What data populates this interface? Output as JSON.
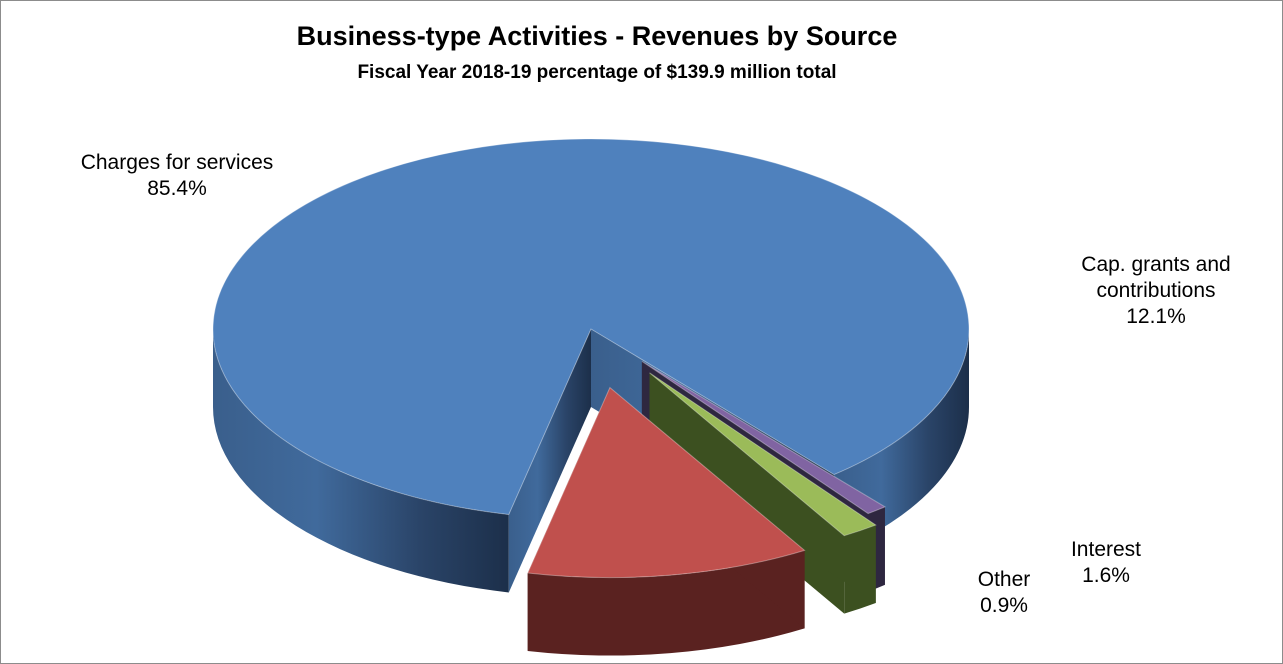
{
  "chart_data": {
    "type": "pie",
    "title": "Business-type Activities  - Revenues by Source",
    "subtitle": "Fiscal Year 2018-19  percentage of $139.9 million total",
    "style": "3d-exploded",
    "slices": [
      {
        "label": "Charges for services",
        "value": 85.4,
        "value_label": "85.4%",
        "color": "#4f81bd"
      },
      {
        "label": "Cap. grants and contributions",
        "label_lines": [
          "Cap. grants and",
          "contributions"
        ],
        "value": 12.1,
        "value_label": "12.1%",
        "color": "#c0504d"
      },
      {
        "label": "Interest",
        "value": 1.6,
        "value_label": "1.6%",
        "color": "#9bbb59"
      },
      {
        "label": "Other",
        "value": 0.9,
        "value_label": "0.9%",
        "color": "#8064a2"
      }
    ]
  }
}
